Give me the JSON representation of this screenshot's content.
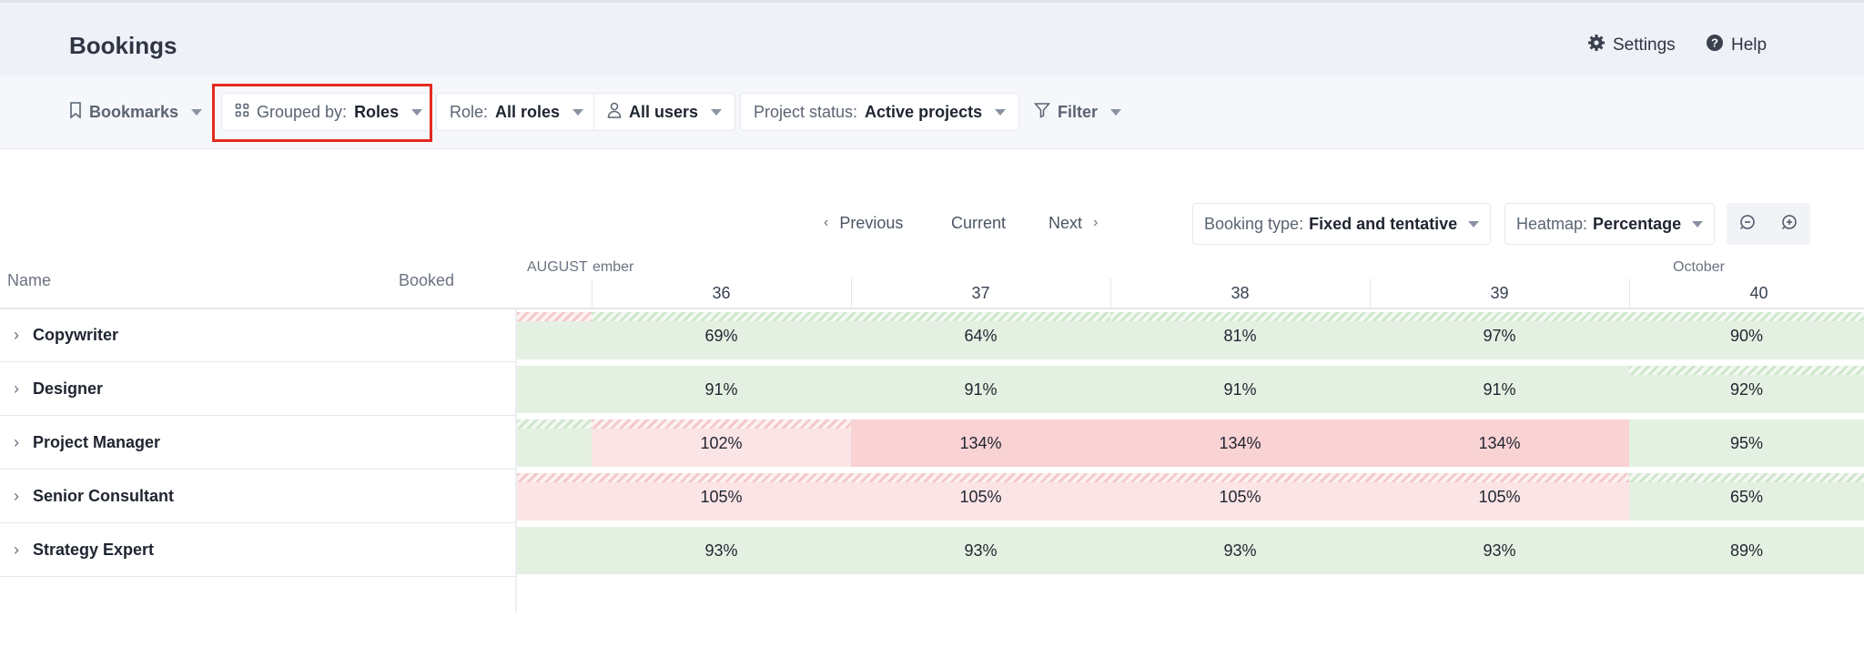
{
  "header": {
    "title": "Bookings",
    "settings_label": "Settings",
    "help_label": "Help"
  },
  "toolbar": {
    "bookmarks_label": "Bookmarks",
    "grouped_prefix": "Grouped by:",
    "grouped_value": "Roles",
    "role_prefix": "Role:",
    "role_value": "All roles",
    "users_value": "All users",
    "project_prefix": "Project status:",
    "project_value": "Active projects",
    "filter_label": "Filter"
  },
  "nav": {
    "previous_label": "Previous",
    "current_label": "Current",
    "next_label": "Next",
    "booking_prefix": "Booking type:",
    "booking_value": "Fixed and tentative",
    "heatmap_prefix": "Heatmap:",
    "heatmap_value": "Percentage"
  },
  "table": {
    "name_header": "Name",
    "booked_header": "Booked",
    "month_partial_label": "AUGUST",
    "month_september_label": "ember",
    "month_october_label": "October",
    "weeks": [
      "36",
      "37",
      "38",
      "39",
      "40"
    ],
    "rows": [
      {
        "name": "Copywriter",
        "values": [
          "69%",
          "64%",
          "81%",
          "97%",
          "90%"
        ]
      },
      {
        "name": "Designer",
        "values": [
          "91%",
          "91%",
          "91%",
          "91%",
          "92%"
        ]
      },
      {
        "name": "Project Manager",
        "values": [
          "102%",
          "134%",
          "134%",
          "134%",
          "95%"
        ]
      },
      {
        "name": "Senior Consultant",
        "values": [
          "105%",
          "105%",
          "105%",
          "105%",
          "65%"
        ]
      },
      {
        "name": "Strategy Expert",
        "values": [
          "93%",
          "93%",
          "93%",
          "93%",
          "89%"
        ]
      }
    ]
  },
  "colors": {
    "under_booked": "#e4f1e2",
    "over_booked": "#fbe4e5",
    "heavily_over_booked": "#f9d2d4",
    "highlight": "#e22a1f"
  }
}
